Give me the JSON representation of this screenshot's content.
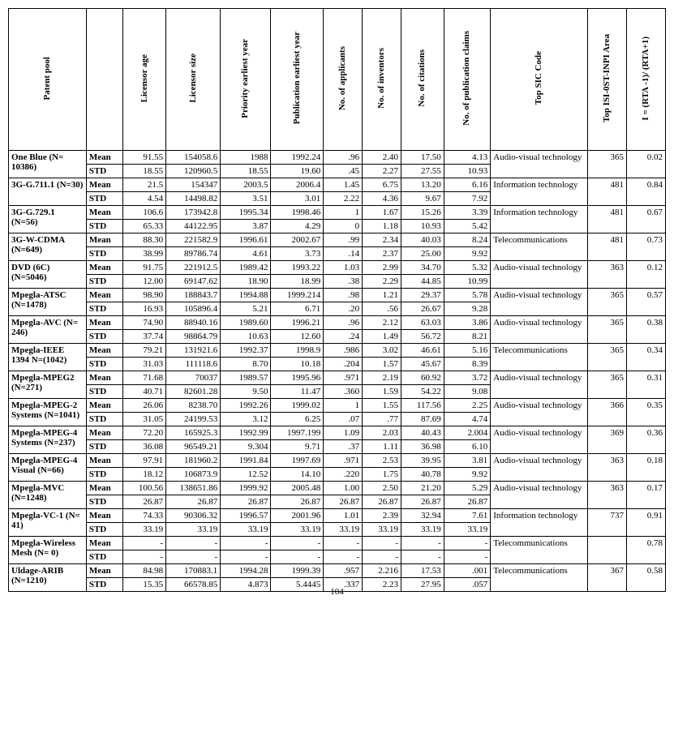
{
  "page_number": "104",
  "columns": [
    {
      "key": "pool",
      "label": "Patent pool",
      "width": 80
    },
    {
      "key": "stat",
      "label": "",
      "width": 38
    },
    {
      "key": "lic_age",
      "label": "Licensor age",
      "width": 44
    },
    {
      "key": "lic_size",
      "label": "Licensor size",
      "width": 56
    },
    {
      "key": "prio",
      "label": "Priority earliest year",
      "width": 52
    },
    {
      "key": "pub",
      "label": "Publication earliest year",
      "width": 54
    },
    {
      "key": "appl",
      "label": "No. of applicants",
      "width": 40
    },
    {
      "key": "inv",
      "label": "No. of inventors",
      "width": 40
    },
    {
      "key": "cit",
      "label": "No. of citations",
      "width": 44
    },
    {
      "key": "claims",
      "label": "No. of publication claims",
      "width": 48
    },
    {
      "key": "sic",
      "label": "Top SIC Code",
      "width": 100
    },
    {
      "key": "area",
      "label": "Top ISI-0ST-INPI Area",
      "width": 40
    },
    {
      "key": "rta",
      "label": "I = (RTA -1)/ (RTA+1)",
      "width": 40
    }
  ],
  "rows": [
    {
      "pool": "One Blue (N= 10386)",
      "stat": "Mean",
      "lic_age": "91.55",
      "lic_size": "154058.6",
      "prio": "1988",
      "pub": "1992.24",
      "appl": ".96",
      "inv": "2.40",
      "cit": "17.50",
      "claims": "4.13",
      "sic": "Audio-visual technology",
      "area": "365",
      "rta": "0.02",
      "pool_rowspan": 2,
      "sic_rowspan": 2,
      "area_rowspan": 2,
      "rta_rowspan": 2
    },
    {
      "stat": "STD",
      "lic_age": "18.55",
      "lic_size": "120960.5",
      "prio": "18.55",
      "pub": "19.60",
      "appl": ".45",
      "inv": "2.27",
      "cit": "27.55",
      "claims": "10.93"
    },
    {
      "pool": "3G-G.711.1 (N=30)",
      "stat": "Mean",
      "lic_age": "21.5",
      "lic_size": "154347",
      "prio": "2003.5",
      "pub": "2006.4",
      "appl": "1.45",
      "inv": "6.75",
      "cit": "13.20",
      "claims": "6.16",
      "sic": "Information technology",
      "area": "481",
      "rta": "0.84",
      "pool_rowspan": 2,
      "sic_rowspan": 2,
      "area_rowspan": 2,
      "rta_rowspan": 2
    },
    {
      "stat": "STD",
      "lic_age": "4.54",
      "lic_size": "14498.82",
      "prio": "3.51",
      "pub": "3.01",
      "appl": "2.22",
      "inv": "4.36",
      "cit": "9.67",
      "claims": "7.92"
    },
    {
      "pool": "3G-G.729.1 (N=56)",
      "stat": "Mean",
      "lic_age": "106.6",
      "lic_size": "173942.8",
      "prio": "1995.34",
      "pub": "1998.46",
      "appl": "1",
      "inv": "1.67",
      "cit": "15.26",
      "claims": "3.39",
      "sic": "Information technology",
      "area": "481",
      "rta": "0.67",
      "pool_rowspan": 2,
      "sic_rowspan": 2,
      "area_rowspan": 2,
      "rta_rowspan": 2
    },
    {
      "stat": "STD",
      "lic_age": "65.33",
      "lic_size": "44122.95",
      "prio": "3.87",
      "pub": "4.29",
      "appl": "0",
      "inv": "1.18",
      "cit": "10.93",
      "claims": "5.42"
    },
    {
      "pool": "3G-W-CDMA (N=649)",
      "stat": "Mean",
      "lic_age": "88.30",
      "lic_size": "221582.9",
      "prio": "1996.61",
      "pub": "2002.67",
      "appl": ".99",
      "inv": "2.34",
      "cit": "40.03",
      "claims": "8.24",
      "sic": "Telecommunications",
      "area": "481",
      "rta": "0.73",
      "pool_rowspan": 2,
      "sic_rowspan": 2,
      "area_rowspan": 2,
      "rta_rowspan": 2
    },
    {
      "stat": "STD",
      "lic_age": "38.99",
      "lic_size": "89786.74",
      "prio": "4.61",
      "pub": "3.73",
      "appl": ".14",
      "inv": "2.37",
      "cit": "25.00",
      "claims": "9.92"
    },
    {
      "pool": "DVD (6C) (N=5046)",
      "stat": "Mean",
      "lic_age": "91.75",
      "lic_size": "221912.5",
      "prio": "1989.42",
      "pub": "1993.22",
      "appl": "1.03",
      "inv": "2.99",
      "cit": "34.70",
      "claims": "5.32",
      "sic": "Audio-visual technology",
      "area": "363",
      "rta": "0.12",
      "pool_rowspan": 2,
      "sic_rowspan": 2,
      "area_rowspan": 2,
      "rta_rowspan": 2
    },
    {
      "stat": "STD",
      "lic_age": "12.00",
      "lic_size": "69147.62",
      "prio": "18.90",
      "pub": "18.99",
      "appl": ".38",
      "inv": "2.29",
      "cit": "44.85",
      "claims": "10.99"
    },
    {
      "pool": "Mpegla-ATSC (N=1478)",
      "stat": "Mean",
      "lic_age": "98.90",
      "lic_size": "188843.7",
      "prio": "1994.88",
      "pub": "1999.214",
      "appl": ".98",
      "inv": "1.21",
      "cit": "29.37",
      "claims": "5.78",
      "sic": "Audio-visual technology",
      "area": "365",
      "rta": "0.57",
      "pool_rowspan": 2,
      "sic_rowspan": 2,
      "area_rowspan": 2,
      "rta_rowspan": 2
    },
    {
      "stat": "STD",
      "lic_age": "16.93",
      "lic_size": "105896.4",
      "prio": "5.21",
      "pub": "6.71",
      "appl": ".20",
      "inv": ".56",
      "cit": "26.67",
      "claims": "9.28"
    },
    {
      "pool": "Mpegla-AVC (N= 246)",
      "stat": "Mean",
      "lic_age": "74.90",
      "lic_size": "88940.16",
      "prio": "1989.60",
      "pub": "1996.21",
      "appl": ".96",
      "inv": "2.12",
      "cit": "63.03",
      "claims": "3.86",
      "sic": "Audio-visual technology",
      "area": "365",
      "rta": "0.38",
      "pool_rowspan": 2,
      "sic_rowspan": 2,
      "area_rowspan": 2,
      "rta_rowspan": 2
    },
    {
      "stat": "STD",
      "lic_age": "37.74",
      "lic_size": "98864.79",
      "prio": "10.63",
      "pub": "12.60",
      "appl": ".24",
      "inv": "1.49",
      "cit": "56.72",
      "claims": "8.21"
    },
    {
      "pool": "Mpegla-IEEE 1394 N=(1042)",
      "stat": "Mean",
      "lic_age": "79.21",
      "lic_size": "131921.6",
      "prio": "1992.37",
      "pub": "1998.9",
      "appl": ".986",
      "inv": "3.02",
      "cit": "46.61",
      "claims": "5.16",
      "sic": "Telecommunications",
      "area": "365",
      "rta": "0.34",
      "pool_rowspan": 2,
      "sic_rowspan": 2,
      "area_rowspan": 2,
      "rta_rowspan": 2
    },
    {
      "stat": "STD",
      "lic_age": "31.03",
      "lic_size": "111118.6",
      "prio": "8.70",
      "pub": "10.18",
      "appl": ".204",
      "inv": "1.57",
      "cit": "45.67",
      "claims": "8.39"
    },
    {
      "pool": "Mpegla-MPEG2 (N=271)",
      "stat": "Mean",
      "lic_age": "71.68",
      "lic_size": "70037",
      "prio": "1989.57",
      "pub": "1995.96",
      "appl": ".971",
      "inv": "2.19",
      "cit": "60.92",
      "claims": "3.72",
      "sic": "Audio-visual technology",
      "area": "365",
      "rta": "0.31",
      "pool_rowspan": 2,
      "sic_rowspan": 2,
      "area_rowspan": 2,
      "rta_rowspan": 2
    },
    {
      "stat": "STD",
      "lic_age": "40.71",
      "lic_size": "82601.28",
      "prio": "9.50",
      "pub": "11.47",
      "appl": ".360",
      "inv": "1.59",
      "cit": "54.22",
      "claims": "9.08"
    },
    {
      "pool": "Mpegla-MPEG-2 Systems (N=1041)",
      "stat": "Mean",
      "lic_age": "26.06",
      "lic_size": "8238.70",
      "prio": "1992.26",
      "pub": "1999.02",
      "appl": "1",
      "inv": "1.55",
      "cit": "117.56",
      "claims": "2.25",
      "sic": "Audio-visual technology",
      "area": "366",
      "rta": "0.35",
      "pool_rowspan": 2,
      "sic_rowspan": 2,
      "area_rowspan": 2,
      "rta_rowspan": 2
    },
    {
      "stat": "STD",
      "lic_age": "31.05",
      "lic_size": "24199.53",
      "prio": "3.12",
      "pub": "6.25",
      "appl": ".07",
      "inv": ".77",
      "cit": "87.69",
      "claims": "4.74"
    },
    {
      "pool": "Mpegla-MPEG-4 Systems (N=237)",
      "stat": "Mean",
      "lic_age": "72.20",
      "lic_size": "165925.3",
      "prio": "1992.99",
      "pub": "1997.199",
      "appl": "1.09",
      "inv": "2.03",
      "cit": "40.43",
      "claims": "2.004",
      "sic": "Audio-visual technology",
      "area": "369",
      "rta": "0.36",
      "pool_rowspan": 2,
      "sic_rowspan": 2,
      "area_rowspan": 2,
      "rta_rowspan": 2
    },
    {
      "stat": "STD",
      "lic_age": "36.08",
      "lic_size": "96549.21",
      "prio": "9.304",
      "pub": "9.71",
      "appl": ".37",
      "inv": "1.11",
      "cit": "36.98",
      "claims": "6.10"
    },
    {
      "pool": "Mpegla-MPEG-4 Visual (N=66)",
      "stat": "Mean",
      "lic_age": "97.91",
      "lic_size": "181960.2",
      "prio": "1991.84",
      "pub": "1997.69",
      "appl": ".971",
      "inv": "2.53",
      "cit": "39.95",
      "claims": "3.81",
      "sic": "Audio-visual technology",
      "area": "363",
      "rta": "0.18",
      "pool_rowspan": 2,
      "sic_rowspan": 2,
      "area_rowspan": 2,
      "rta_rowspan": 2
    },
    {
      "stat": "STD",
      "lic_age": "18.12",
      "lic_size": "106873.9",
      "prio": "12.52",
      "pub": "14.10",
      "appl": ".220",
      "inv": "1.75",
      "cit": "40.78",
      "claims": "9.92"
    },
    {
      "pool": "Mpegla-MVC (N=1248)",
      "stat": "Mean",
      "lic_age": "100.56",
      "lic_size": "138651.86",
      "prio": "1999.92",
      "pub": "2005.48",
      "appl": "1.00",
      "inv": "2.50",
      "cit": "21.20",
      "claims": "5.29",
      "sic": "Audio-visual technology",
      "area": "363",
      "rta": "0.17",
      "pool_rowspan": 2,
      "sic_rowspan": 2,
      "area_rowspan": 2,
      "rta_rowspan": 2
    },
    {
      "stat": "STD",
      "lic_age": "26.87",
      "lic_size": "26.87",
      "prio": "26.87",
      "pub": "26.87",
      "appl": "26.87",
      "inv": "26.87",
      "cit": "26.87",
      "claims": "26.87"
    },
    {
      "pool": "Mpegla-VC-1 (N= 41)",
      "stat": "Mean",
      "lic_age": "74.33",
      "lic_size": "90306.32",
      "prio": "1996.57",
      "pub": "2001.96",
      "appl": "1.01",
      "inv": "2.39",
      "cit": "32.94",
      "claims": "7.61",
      "sic": "Information technology",
      "area": "737",
      "rta": "0.91",
      "pool_rowspan": 2,
      "sic_rowspan": 2,
      "area_rowspan": 2,
      "rta_rowspan": 2
    },
    {
      "stat": "STD",
      "lic_age": "33.19",
      "lic_size": "33.19",
      "prio": "33.19",
      "pub": "33.19",
      "appl": "33.19",
      "inv": "33.19",
      "cit": "33.19",
      "claims": "33.19"
    },
    {
      "pool": "Mpegla-Wireless Mesh (N= 0)",
      "stat": "Mean",
      "lic_age": "-",
      "lic_size": "-",
      "prio": "-",
      "pub": "-",
      "appl": "-",
      "inv": "-",
      "cit": "-",
      "claims": "-",
      "sic": "Telecommunications",
      "area": "",
      "rta": "0.78",
      "pool_rowspan": 2,
      "sic_rowspan": 2,
      "area_rowspan": 2,
      "rta_rowspan": 2
    },
    {
      "stat": "STD",
      "lic_age": "-",
      "lic_size": "-",
      "prio": "-",
      "pub": "-",
      "appl": "-",
      "inv": "-",
      "cit": "-",
      "claims": "-"
    },
    {
      "pool": "Uldage-ARIB (N=1210)",
      "stat": "Mean",
      "lic_age": "84.98",
      "lic_size": "170883.1",
      "prio": "1994.28",
      "pub": "1999.39",
      "appl": ".957",
      "inv": "2.216",
      "cit": "17.53",
      "claims": ".001",
      "sic": "Telecommunications",
      "area": "367",
      "rta": "0.58",
      "pool_rowspan": 2,
      "sic_rowspan": 2,
      "area_rowspan": 2,
      "rta_rowspan": 2
    },
    {
      "stat": "STD",
      "lic_age": "15.35",
      "lic_size": "66578.85",
      "prio": "4.873",
      "pub": "5.4445",
      "appl": ".337",
      "inv": "2.23",
      "cit": "27.95",
      "claims": ".057"
    }
  ]
}
